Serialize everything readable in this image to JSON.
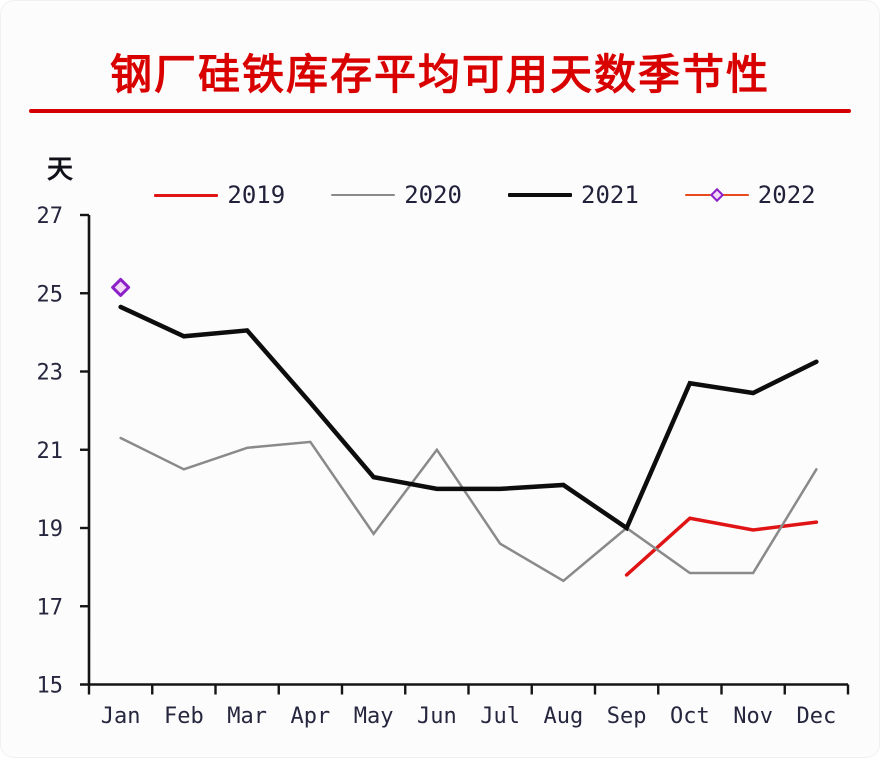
{
  "title": "钢厂硅铁库存平均可用天数季节性",
  "y_unit_label": "天",
  "colors": {
    "title_red": "#d90000",
    "divider_red": "#d40000",
    "axis": "#151515",
    "tick_label": "#26263e",
    "series_2019": "#e01414",
    "series_2020": "#8a8a8a",
    "series_2021": "#0d0d0d",
    "series_2022_line": "#e8491d",
    "marker_2022_stroke": "#8b1fc8",
    "marker_2022_fill": "#f3d9f5",
    "background": "#fcfcfd"
  },
  "chart_data": {
    "type": "line",
    "title": "钢厂硅铁库存平均可用天数季节性",
    "xlabel": "",
    "ylabel": "天",
    "ylim": [
      15,
      27
    ],
    "y_ticks": [
      27,
      25,
      23,
      21,
      19,
      17,
      15
    ],
    "grid": false,
    "legend_position": "top",
    "categories": [
      "Jan",
      "Feb",
      "Mar",
      "Apr",
      "May",
      "Jun",
      "Jul",
      "Aug",
      "Sep",
      "Oct",
      "Nov",
      "Dec"
    ],
    "series": [
      {
        "name": "2019",
        "color": "#e01414",
        "line_width": 3.5,
        "values": [
          null,
          null,
          null,
          null,
          null,
          null,
          null,
          null,
          17.8,
          19.25,
          18.95,
          19.15
        ]
      },
      {
        "name": "2020",
        "color": "#8a8a8a",
        "line_width": 2.5,
        "values": [
          21.3,
          20.5,
          21.05,
          21.2,
          18.85,
          21.0,
          18.6,
          17.65,
          19.0,
          17.85,
          17.85,
          20.5
        ]
      },
      {
        "name": "2021",
        "color": "#0d0d0d",
        "line_width": 4.5,
        "values": [
          24.65,
          23.9,
          24.05,
          22.2,
          20.3,
          20.0,
          20.0,
          20.1,
          19.0,
          22.7,
          22.45,
          23.25
        ]
      },
      {
        "name": "2022",
        "color": "#e8491d",
        "line_width": 3,
        "marker": {
          "shape": "diamond",
          "stroke": "#8b1fc8",
          "fill": "#f3d9f5"
        },
        "values": [
          25.15,
          null,
          null,
          null,
          null,
          null,
          null,
          null,
          null,
          null,
          null,
          null
        ]
      }
    ]
  }
}
